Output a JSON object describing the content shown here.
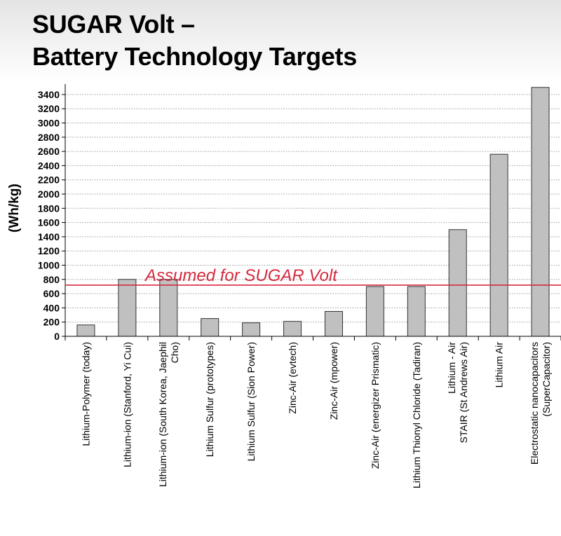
{
  "slide": {
    "title_line1": "SUGAR Volt –",
    "title_line2": "Battery Technology Targets"
  },
  "chart_data": {
    "type": "bar",
    "title": "",
    "xlabel": "",
    "ylabel": "(Wh/kg)",
    "ylim": [
      0,
      3400
    ],
    "yticks": [
      0,
      200,
      400,
      600,
      800,
      1000,
      1200,
      1400,
      1600,
      1800,
      2000,
      2200,
      2400,
      2600,
      2800,
      3000,
      3200,
      3400
    ],
    "grid": "horizontal dotted",
    "categories": [
      [
        "Lithium-Polymer (today)"
      ],
      [
        "Lithium-ion (Stanford, Yi Cui)"
      ],
      [
        "Lithium-ion (South Korea, Jaephil",
        "Cho)"
      ],
      [
        "Lithium Sulfur (prototypes)"
      ],
      [
        "Lithium Sulfur (Sion Power)"
      ],
      [
        "Zinc-Air (evtech)"
      ],
      [
        "Zinc-Air (mpower)"
      ],
      [
        "Zinc-Air (energizer Prismatic)"
      ],
      [
        "Lithium Thionyl Chloride (Tadiran)"
      ],
      [
        "Lithium - Air",
        "STAIR (St Andrews Air)"
      ],
      [
        "Lithium Air"
      ],
      [
        "Electrostatic nanocapacitors",
        "(SuperCapacitor)"
      ]
    ],
    "values": [
      160,
      800,
      800,
      250,
      190,
      210,
      350,
      700,
      700,
      1500,
      2560,
      3500
    ],
    "reference_line": {
      "value": 710,
      "label": "Assumed for SUGAR Volt",
      "color": "#d42a3c"
    },
    "colors": {
      "bar_fill": "#c0c0c0",
      "bar_stroke": "#333333",
      "grid": "#9a9a9a"
    }
  }
}
